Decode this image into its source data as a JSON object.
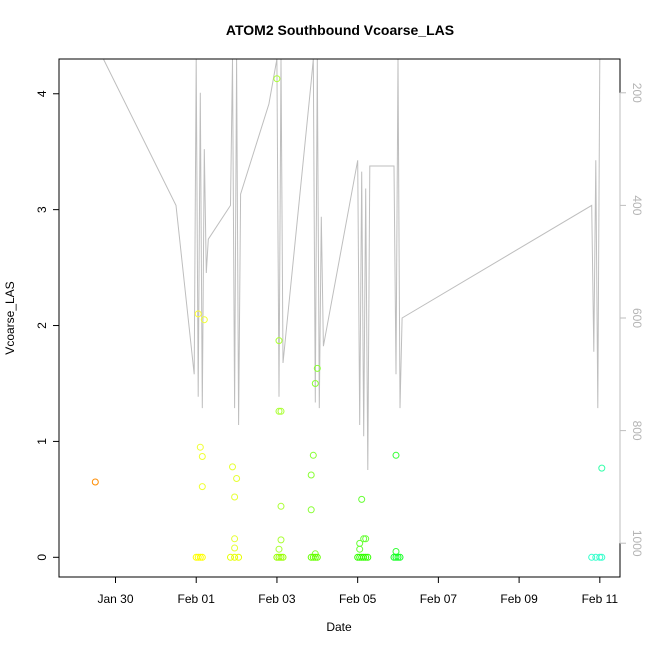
{
  "chart_data": {
    "type": "scatter",
    "title": "ATOM2 Southbound Vcoarse_LAS",
    "xlabel": "Date",
    "ylabel": "Vcoarse_LAS",
    "x_ticks": [
      "Jan 30",
      "Feb 01",
      "Feb 03",
      "Feb 05",
      "Feb 07",
      "Feb 09",
      "Feb 11"
    ],
    "x_tick_days": [
      30,
      32,
      34,
      36,
      38,
      40,
      42
    ],
    "xlim": [
      28.6,
      42.5
    ],
    "ylim": [
      -0.17,
      4.3
    ],
    "y_ticks": [
      0,
      1,
      2,
      3,
      4
    ],
    "right_axis": {
      "ticks": [
        200,
        400,
        600,
        800,
        1000
      ],
      "lim": [
        1060,
        140
      ],
      "reversed": true,
      "color": "#bebebe"
    },
    "points": [
      {
        "x": 29.5,
        "y": 0.65,
        "color": "#ff8c00"
      },
      {
        "x": 32.05,
        "y": 2.1,
        "color": "#ffff33"
      },
      {
        "x": 32.1,
        "y": 0.95,
        "color": "#f0ff33"
      },
      {
        "x": 32.15,
        "y": 0.87,
        "color": "#f0ff33"
      },
      {
        "x": 32.15,
        "y": 0.61,
        "color": "#f0ff33"
      },
      {
        "x": 32.2,
        "y": 2.05,
        "color": "#f0ff33"
      },
      {
        "x": 32.0,
        "y": 0.0,
        "color": "#ffff00"
      },
      {
        "x": 32.05,
        "y": 0.0,
        "color": "#ffff00"
      },
      {
        "x": 32.1,
        "y": 0.0,
        "color": "#ffff00"
      },
      {
        "x": 32.15,
        "y": 0.0,
        "color": "#ffff00"
      },
      {
        "x": 32.9,
        "y": 0.78,
        "color": "#e6ff33"
      },
      {
        "x": 32.95,
        "y": 0.52,
        "color": "#e6ff33"
      },
      {
        "x": 32.95,
        "y": 0.16,
        "color": "#e6ff33"
      },
      {
        "x": 32.95,
        "y": 0.08,
        "color": "#e6ff33"
      },
      {
        "x": 33.0,
        "y": 0.68,
        "color": "#e6ff33"
      },
      {
        "x": 32.85,
        "y": 0.0,
        "color": "#e6ff00"
      },
      {
        "x": 32.95,
        "y": 0.0,
        "color": "#e6ff00"
      },
      {
        "x": 33.05,
        "y": 0.0,
        "color": "#e6ff00"
      },
      {
        "x": 34.0,
        "y": 4.13,
        "color": "#aaff33"
      },
      {
        "x": 34.05,
        "y": 1.87,
        "color": "#aaff33"
      },
      {
        "x": 34.05,
        "y": 1.26,
        "color": "#aaff33"
      },
      {
        "x": 34.1,
        "y": 1.26,
        "color": "#aaff33"
      },
      {
        "x": 34.1,
        "y": 0.44,
        "color": "#aaff33"
      },
      {
        "x": 34.1,
        "y": 0.15,
        "color": "#aaff33"
      },
      {
        "x": 34.05,
        "y": 0.07,
        "color": "#aaff33"
      },
      {
        "x": 34.0,
        "y": 0.0,
        "color": "#99ff00"
      },
      {
        "x": 34.05,
        "y": 0.0,
        "color": "#99ff00"
      },
      {
        "x": 34.1,
        "y": 0.0,
        "color": "#99ff00"
      },
      {
        "x": 34.15,
        "y": 0.0,
        "color": "#99ff00"
      },
      {
        "x": 34.85,
        "y": 0.71,
        "color": "#88ff33"
      },
      {
        "x": 34.9,
        "y": 0.88,
        "color": "#88ff33"
      },
      {
        "x": 34.85,
        "y": 0.41,
        "color": "#88ff33"
      },
      {
        "x": 34.95,
        "y": 1.5,
        "color": "#88ff33"
      },
      {
        "x": 35.0,
        "y": 1.63,
        "color": "#88ff33"
      },
      {
        "x": 34.95,
        "y": 0.03,
        "color": "#88ff33"
      },
      {
        "x": 34.85,
        "y": 0.0,
        "color": "#66ff00"
      },
      {
        "x": 34.9,
        "y": 0.0,
        "color": "#66ff00"
      },
      {
        "x": 34.95,
        "y": 0.0,
        "color": "#66ff00"
      },
      {
        "x": 35.0,
        "y": 0.0,
        "color": "#66ff00"
      },
      {
        "x": 36.1,
        "y": 0.5,
        "color": "#66ff33"
      },
      {
        "x": 36.05,
        "y": 0.12,
        "color": "#66ff33"
      },
      {
        "x": 36.05,
        "y": 0.07,
        "color": "#66ff33"
      },
      {
        "x": 36.15,
        "y": 0.16,
        "color": "#66ff33"
      },
      {
        "x": 36.2,
        "y": 0.16,
        "color": "#66ff33"
      },
      {
        "x": 36.0,
        "y": 0.0,
        "color": "#33ff00"
      },
      {
        "x": 36.05,
        "y": 0.0,
        "color": "#33ff00"
      },
      {
        "x": 36.1,
        "y": 0.0,
        "color": "#33ff00"
      },
      {
        "x": 36.15,
        "y": 0.0,
        "color": "#33ff00"
      },
      {
        "x": 36.2,
        "y": 0.0,
        "color": "#33ff00"
      },
      {
        "x": 36.25,
        "y": 0.0,
        "color": "#33ff00"
      },
      {
        "x": 36.95,
        "y": 0.88,
        "color": "#33ff33"
      },
      {
        "x": 36.95,
        "y": 0.05,
        "color": "#33ff33"
      },
      {
        "x": 36.9,
        "y": 0.0,
        "color": "#11ff22"
      },
      {
        "x": 36.95,
        "y": 0.0,
        "color": "#11ff22"
      },
      {
        "x": 37.0,
        "y": 0.0,
        "color": "#11ff22"
      },
      {
        "x": 37.05,
        "y": 0.0,
        "color": "#11ff22"
      },
      {
        "x": 42.05,
        "y": 0.77,
        "color": "#33ffaa"
      },
      {
        "x": 41.8,
        "y": 0.0,
        "color": "#33ffcc"
      },
      {
        "x": 41.9,
        "y": 0.0,
        "color": "#33ffcc"
      },
      {
        "x": 42.0,
        "y": 0.0,
        "color": "#33ffcc"
      },
      {
        "x": 42.05,
        "y": 0.0,
        "color": "#33ffcc"
      }
    ],
    "depth_line": [
      [
        29.7,
        140
      ],
      [
        31.5,
        400
      ],
      [
        31.95,
        700
      ],
      [
        32.0,
        140
      ],
      [
        32.05,
        740
      ],
      [
        32.1,
        200
      ],
      [
        32.15,
        760
      ],
      [
        32.2,
        300
      ],
      [
        32.25,
        520
      ],
      [
        32.3,
        460
      ],
      [
        32.85,
        400
      ],
      [
        32.9,
        140
      ],
      [
        32.95,
        760
      ],
      [
        33.0,
        140
      ],
      [
        33.05,
        790
      ],
      [
        33.1,
        380
      ],
      [
        33.8,
        220
      ],
      [
        34.0,
        140
      ],
      [
        34.05,
        740
      ],
      [
        34.1,
        140
      ],
      [
        34.15,
        680
      ],
      [
        34.85,
        180
      ],
      [
        34.9,
        140
      ],
      [
        34.95,
        750
      ],
      [
        35.0,
        140
      ],
      [
        35.05,
        760
      ],
      [
        35.1,
        420
      ],
      [
        35.15,
        650
      ],
      [
        36.0,
        320
      ],
      [
        36.05,
        790
      ],
      [
        36.1,
        340
      ],
      [
        36.15,
        810
      ],
      [
        36.2,
        370
      ],
      [
        36.25,
        870
      ],
      [
        36.3,
        330
      ],
      [
        36.9,
        330
      ],
      [
        36.95,
        700
      ],
      [
        37.0,
        140
      ],
      [
        37.05,
        760
      ],
      [
        37.1,
        600
      ],
      [
        41.8,
        400
      ],
      [
        41.85,
        660
      ],
      [
        41.9,
        320
      ],
      [
        41.95,
        760
      ],
      [
        42.0,
        140
      ]
    ]
  }
}
